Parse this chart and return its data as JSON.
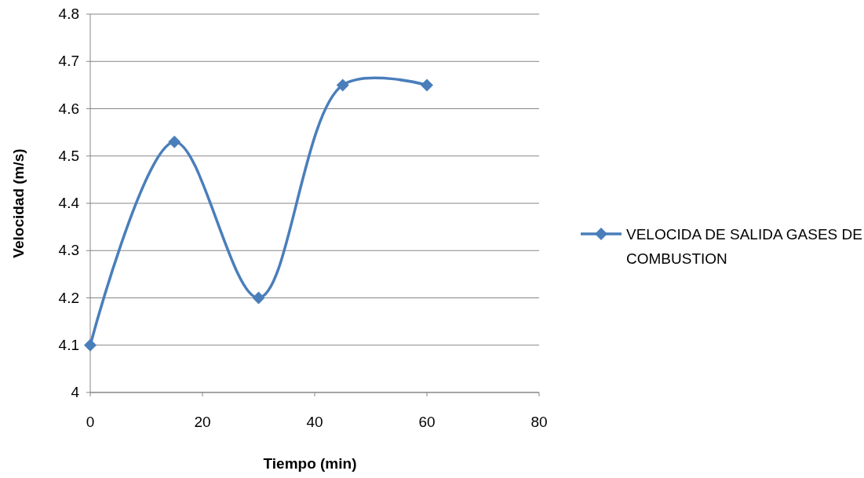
{
  "chart_data": {
    "type": "line",
    "xlabel": "Tiempo (min)",
    "ylabel": "Velocidad (m/s)",
    "x": [
      0,
      15,
      30,
      45,
      60
    ],
    "series": [
      {
        "name": "VELOCIDA DE SALIDA GASES DE COMBUSTION",
        "color": "#4a7ebb",
        "values": [
          4.1,
          4.53,
          4.2,
          4.65,
          4.65
        ]
      }
    ],
    "xlim": [
      0,
      80
    ],
    "xticks": [
      0,
      20,
      40,
      60,
      80
    ],
    "ylim": [
      4,
      4.8
    ],
    "yticks": [
      4,
      4.1,
      4.2,
      4.3,
      4.4,
      4.5,
      4.6,
      4.7,
      4.8
    ],
    "grid": "y",
    "legend": "right",
    "marker": "diamond",
    "line_style": "solid"
  }
}
